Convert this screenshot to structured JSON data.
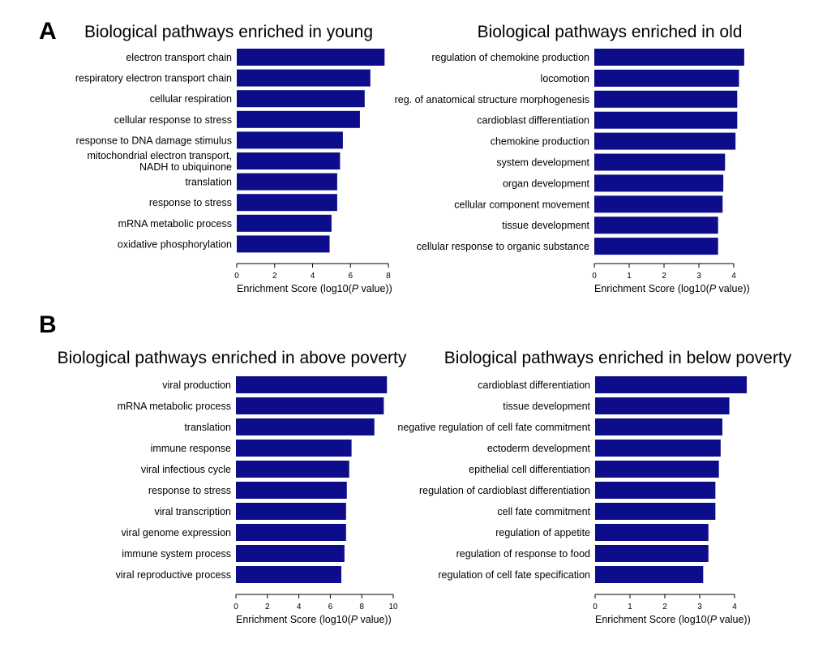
{
  "panels": {
    "a": "A",
    "b": "B"
  },
  "chart_data": [
    {
      "type": "bar",
      "orientation": "horizontal",
      "title": "Biological pathways enriched in young",
      "categories": [
        "electron transport chain",
        "respiratory electron transport chain",
        "cellular respiration",
        "cellular response to stress",
        "response to DNA damage stimulus",
        "mitochondrial electron transport,\nNADH to ubiquinone",
        "translation",
        "response to stress",
        "mRNA metabolic process",
        "oxidative phosphorylation"
      ],
      "values": [
        7.8,
        7.05,
        6.75,
        6.5,
        5.6,
        5.45,
        5.3,
        5.3,
        5.0,
        4.9
      ],
      "xticks": [
        0,
        2,
        4,
        6,
        8
      ],
      "xlim": [
        0,
        8
      ],
      "xlabel_pre": "Enrichment Score (log10(",
      "xlabel_italic": "P",
      "xlabel_post": " value))"
    },
    {
      "type": "bar",
      "orientation": "horizontal",
      "title": "Biological pathways enriched in old",
      "categories": [
        "regulation of chemokine production",
        "locomotion",
        "reg. of anatomical structure morphogenesis",
        "cardioblast differentiation",
        "chemokine production",
        "system development",
        "organ development",
        "cellular component movement",
        "tissue development",
        "cellular response to organic substance"
      ],
      "values": [
        4.3,
        4.15,
        4.1,
        4.1,
        4.05,
        3.75,
        3.7,
        3.68,
        3.55,
        3.55
      ],
      "xticks": [
        0,
        1,
        2,
        3,
        4
      ],
      "xlim": [
        0,
        4
      ],
      "xlabel_pre": "Enrichment Score (log10(",
      "xlabel_italic": "P",
      "xlabel_post": " value))"
    },
    {
      "type": "bar",
      "orientation": "horizontal",
      "title": "Biological pathways enriched in above poverty",
      "categories": [
        "viral production",
        "mRNA metabolic process",
        "translation",
        "immune response",
        "viral infectious cycle",
        "response to stress",
        "viral transcription",
        "viral genome expression",
        "immune system process",
        "viral reproductive process"
      ],
      "values": [
        9.6,
        9.4,
        8.8,
        7.35,
        7.2,
        7.05,
        7.0,
        7.0,
        6.9,
        6.7
      ],
      "xticks": [
        0,
        2,
        4,
        6,
        8,
        10
      ],
      "xlim": [
        0,
        10
      ],
      "xlabel_pre": "Enrichment Score (log10(",
      "xlabel_italic": "P",
      "xlabel_post": " value))"
    },
    {
      "type": "bar",
      "orientation": "horizontal",
      "title": "Biological pathways enriched in below poverty",
      "categories": [
        "cardioblast differentiation",
        "tissue development",
        "negative regulation of cell fate commitment",
        "ectoderm development",
        "epithelial cell differentiation",
        "regulation of cardioblast differentiation",
        "cell fate commitment",
        "regulation of appetite",
        "regulation of response to food",
        "regulation of cell fate specification"
      ],
      "values": [
        4.35,
        3.85,
        3.65,
        3.6,
        3.55,
        3.45,
        3.45,
        3.25,
        3.25,
        3.1
      ],
      "xticks": [
        0,
        1,
        2,
        3,
        4
      ],
      "xlim": [
        0,
        4
      ],
      "xlabel_pre": "Enrichment Score (log10(",
      "xlabel_italic": "P",
      "xlabel_post": " value))"
    }
  ]
}
